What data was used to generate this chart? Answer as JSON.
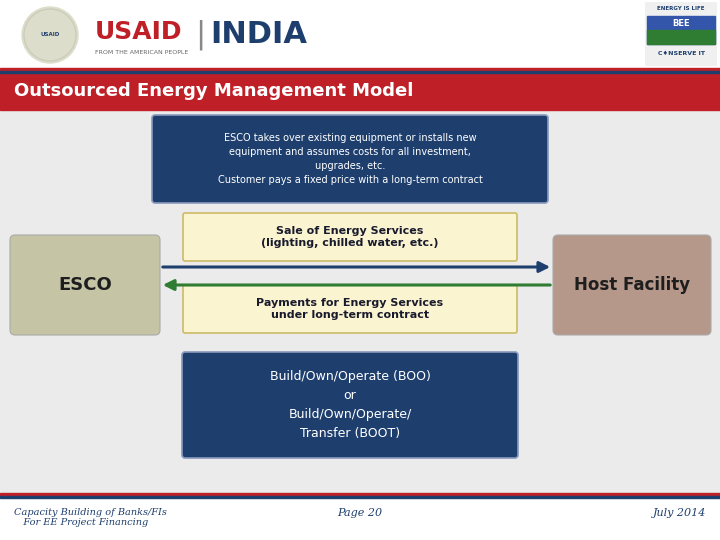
{
  "title": "Outsourced Energy Management Model",
  "title_bg": "#bf1f26",
  "title_color": "#ffffff",
  "bg_color": "#ffffff",
  "slide_bg": "#ebebeb",
  "esco_box_color": "#c5c5a5",
  "host_box_color": "#b5988a",
  "blue_box_color": "#1e3f6e",
  "yellow_box_color": "#faf5d0",
  "footer_line_color": "#bf1f26",
  "footer_line2_color": "#1e3f6e",
  "footer_text_color": "#1e3f6e",
  "esco_label": "ESCO",
  "host_label": "Host Facility",
  "top_text": "ESCO takes over existing equipment or installs new\nequipment and assumes costs for all investment,\nupgrades, etc.\nCustomer pays a fixed price with a long-term contract",
  "sale_text": "Sale of Energy Services\n(lighting, chilled water, etc.)",
  "payment_text": "Payments for Energy Services\nunder long-term contract",
  "boo_text": "Build/Own/Operate (BOO)\nor\nBuild/Own/Operate/\nTransfer (BOOT)",
  "footer_left": "Capacity Building of Banks/FIs\n   For EE Project Financing",
  "footer_center": "Page 20",
  "footer_right": "July 2014",
  "arrow_right_color": "#1e3f6e",
  "arrow_left_color": "#2e7d32",
  "usaid_color": "#bf1f26",
  "india_color": "#1e3f6e",
  "header_sep_color1": "#bf1f26",
  "header_sep_color2": "#1e3f6e"
}
